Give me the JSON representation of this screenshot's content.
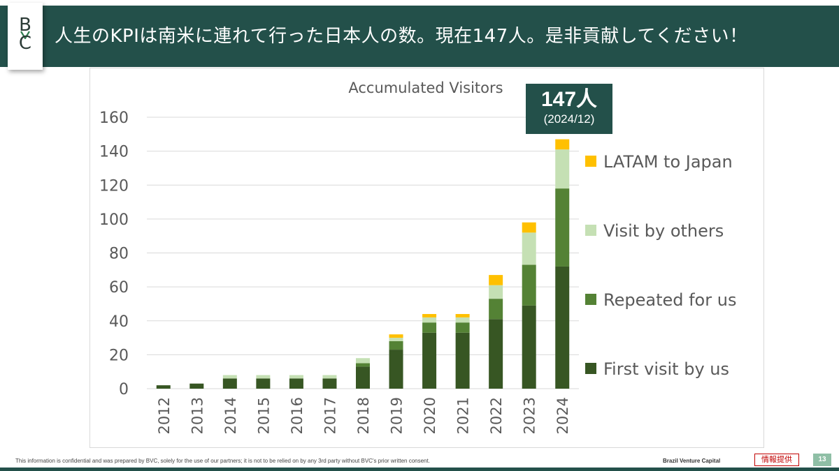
{
  "header": {
    "title": "人生のKPIは南米に連れて行った日本人の数。現在147人。是非貢献してください！"
  },
  "logo": {
    "b": "B",
    "c": "C",
    "icon": "heart-v-icon"
  },
  "callout": {
    "value": "147人",
    "sub": "(2024/12)"
  },
  "footer": {
    "note": "This information is confidential and was prepared by BVC, solely for the use of our partners; it is not to be relied on by any 3rd party without BVC's prior written consent.",
    "brand": "Brazil Venture Capital",
    "badge": "情報提供",
    "page": "13"
  },
  "colors": {
    "header_bg": "#23504a",
    "first_visit": "#375623",
    "repeated": "#548235",
    "others": "#c5e0b4",
    "latam": "#ffc000"
  },
  "chart_data": {
    "type": "bar",
    "stacked": true,
    "title": "Accumulated Visitors",
    "xlabel": "",
    "ylabel": "",
    "ylim": [
      0,
      160
    ],
    "yticks": [
      0,
      20,
      40,
      60,
      80,
      100,
      120,
      140,
      160
    ],
    "grid": true,
    "legend_position": "right",
    "categories": [
      "2012",
      "2013",
      "2014",
      "2015",
      "2016",
      "2017",
      "2018",
      "2019",
      "2020",
      "2021",
      "2022",
      "2023",
      "2024"
    ],
    "series": [
      {
        "name": "First visit by us",
        "color": "#375623",
        "values": [
          2,
          3,
          6,
          6,
          6,
          6,
          13,
          23,
          33,
          33,
          41,
          49,
          72
        ]
      },
      {
        "name": "Repeated for us",
        "color": "#548235",
        "values": [
          0,
          0,
          0,
          0,
          0,
          0,
          2,
          5,
          6,
          6,
          12,
          24,
          46
        ]
      },
      {
        "name": "Visit by others",
        "color": "#c5e0b4",
        "values": [
          0,
          0,
          2,
          2,
          2,
          2,
          3,
          2,
          3,
          3,
          8,
          19,
          23
        ]
      },
      {
        "name": "LATAM to Japan",
        "color": "#ffc000",
        "values": [
          0,
          0,
          0,
          0,
          0,
          0,
          0,
          2,
          2,
          2,
          6,
          6,
          6
        ]
      }
    ],
    "legend_order": [
      "LATAM to Japan",
      "Visit by others",
      "Repeated for us",
      "First visit by us"
    ]
  }
}
